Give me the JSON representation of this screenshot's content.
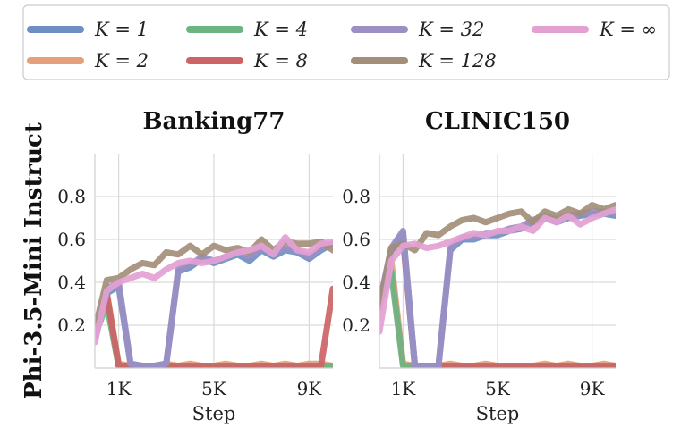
{
  "chart_data": {
    "type": "line",
    "row_label": "Phi-3.5-Mini Instruct",
    "legend": {
      "placement": "top",
      "entries": [
        {
          "key": "k1",
          "label": "K = 1",
          "color": "#6d8fc3"
        },
        {
          "key": "k2",
          "label": "K = 2",
          "color": "#e4a07a"
        },
        {
          "key": "k4",
          "label": "K = 4",
          "color": "#6db381"
        },
        {
          "key": "k8",
          "label": "K = 8",
          "color": "#cc6466"
        },
        {
          "key": "k32",
          "label": "K = 32",
          "color": "#9b8fc4"
        },
        {
          "key": "k128",
          "label": "K = 128",
          "color": "#a38e7a"
        },
        {
          "key": "kinf",
          "label": "K = ∞",
          "color": "#e3a1d2"
        }
      ]
    },
    "panels": [
      {
        "title": "Banking77",
        "xlabel": "Step",
        "ylabel": "",
        "xlim": [
          0,
          10000
        ],
        "ylim": [
          0.0,
          1.0
        ],
        "xticks": [
          1000,
          5000,
          9000
        ],
        "xtick_labels": [
          "1K",
          "5K",
          "9K"
        ],
        "yticks": [
          0.2,
          0.4,
          0.6,
          0.8
        ],
        "ytick_labels": [
          "0.2",
          "0.4",
          "0.6",
          "0.8"
        ],
        "grid": true,
        "x": [
          0,
          500,
          1000,
          1500,
          2000,
          2500,
          3000,
          3500,
          4000,
          4500,
          5000,
          5500,
          6000,
          6500,
          7000,
          7500,
          8000,
          8500,
          9000,
          9500,
          10000
        ],
        "series": [
          {
            "key": "k2",
            "values": [
              0.15,
              0.35,
              0.02,
              0.01,
              0.01,
              0.01,
              0.02,
              0.01,
              0.02,
              0.01,
              0.01,
              0.02,
              0.01,
              0.01,
              0.02,
              0.01,
              0.02,
              0.01,
              0.02,
              0.02,
              0.01
            ]
          },
          {
            "key": "k4",
            "values": [
              0.15,
              0.3,
              0.01,
              0.01,
              0.01,
              0.01,
              0.01,
              0.01,
              0.01,
              0.01,
              0.01,
              0.01,
              0.01,
              0.01,
              0.01,
              0.01,
              0.01,
              0.01,
              0.01,
              0.01,
              0.01
            ]
          },
          {
            "key": "k8",
            "values": [
              0.15,
              0.35,
              0.01,
              0.01,
              0.01,
              0.01,
              0.01,
              0.01,
              0.01,
              0.01,
              0.01,
              0.01,
              0.01,
              0.01,
              0.01,
              0.01,
              0.01,
              0.01,
              0.01,
              0.01,
              0.37
            ]
          },
          {
            "key": "k1",
            "values": [
              0.15,
              0.35,
              0.38,
              0.02,
              0.01,
              0.01,
              0.02,
              0.45,
              0.47,
              0.51,
              0.49,
              0.51,
              0.53,
              0.5,
              0.55,
              0.52,
              0.55,
              0.54,
              0.51,
              0.55,
              0.58
            ]
          },
          {
            "key": "k32",
            "values": [
              0.15,
              0.37,
              0.4,
              0.02,
              0.01,
              0.01,
              0.02,
              0.46,
              0.48,
              0.52,
              0.5,
              0.52,
              0.54,
              0.52,
              0.56,
              0.54,
              0.56,
              0.55,
              0.52,
              0.56,
              0.58
            ]
          },
          {
            "key": "k128",
            "values": [
              0.18,
              0.41,
              0.42,
              0.46,
              0.49,
              0.48,
              0.54,
              0.53,
              0.57,
              0.53,
              0.57,
              0.55,
              0.56,
              0.54,
              0.6,
              0.55,
              0.59,
              0.58,
              0.58,
              0.59,
              0.55
            ]
          },
          {
            "key": "kinf",
            "values": [
              0.12,
              0.36,
              0.4,
              0.42,
              0.44,
              0.42,
              0.46,
              0.49,
              0.5,
              0.49,
              0.5,
              0.52,
              0.54,
              0.55,
              0.57,
              0.53,
              0.61,
              0.55,
              0.54,
              0.58,
              0.59
            ]
          }
        ]
      },
      {
        "title": "CLINIC150",
        "xlabel": "Step",
        "ylabel": "",
        "xlim": [
          0,
          10000
        ],
        "ylim": [
          0.0,
          1.0
        ],
        "xticks": [
          1000,
          5000,
          9000
        ],
        "xtick_labels": [
          "1K",
          "5K",
          "9K"
        ],
        "yticks": [
          0.2,
          0.4,
          0.6,
          0.8
        ],
        "ytick_labels": [
          "0.2",
          "0.4",
          "0.6",
          "0.8"
        ],
        "grid": true,
        "x": [
          0,
          500,
          1000,
          1500,
          2000,
          2500,
          3000,
          3500,
          4000,
          4500,
          5000,
          5500,
          6000,
          6500,
          7000,
          7500,
          8000,
          8500,
          9000,
          9500,
          10000
        ],
        "series": [
          {
            "key": "k2",
            "values": [
              0.3,
              0.5,
              0.02,
              0.01,
              0.01,
              0.01,
              0.02,
              0.01,
              0.01,
              0.02,
              0.01,
              0.01,
              0.01,
              0.01,
              0.02,
              0.01,
              0.02,
              0.01,
              0.01,
              0.02,
              0.01
            ]
          },
          {
            "key": "k4",
            "values": [
              0.3,
              0.45,
              0.01,
              0.01,
              0.01,
              0.01,
              0.01,
              0.01,
              0.01,
              0.01,
              0.01,
              0.01,
              0.01,
              0.01,
              0.01,
              0.01,
              0.01,
              0.01,
              0.01,
              0.01,
              0.01
            ]
          },
          {
            "key": "k8",
            "values": [
              0.3,
              0.55,
              0.6,
              0.01,
              0.01,
              0.01,
              0.01,
              0.01,
              0.01,
              0.01,
              0.01,
              0.01,
              0.01,
              0.01,
              0.01,
              0.01,
              0.01,
              0.01,
              0.01,
              0.01,
              0.01
            ]
          },
          {
            "key": "k1",
            "values": [
              0.3,
              0.55,
              0.63,
              0.01,
              0.01,
              0.01,
              0.55,
              0.6,
              0.6,
              0.62,
              0.62,
              0.64,
              0.65,
              0.68,
              0.7,
              0.68,
              0.7,
              0.71,
              0.72,
              0.72,
              0.71
            ]
          },
          {
            "key": "k32",
            "values": [
              0.3,
              0.56,
              0.64,
              0.01,
              0.01,
              0.01,
              0.56,
              0.61,
              0.61,
              0.63,
              0.63,
              0.65,
              0.66,
              0.69,
              0.71,
              0.69,
              0.71,
              0.72,
              0.73,
              0.73,
              0.72
            ]
          },
          {
            "key": "k128",
            "values": [
              0.28,
              0.56,
              0.58,
              0.55,
              0.63,
              0.62,
              0.66,
              0.69,
              0.7,
              0.68,
              0.7,
              0.72,
              0.73,
              0.68,
              0.73,
              0.71,
              0.74,
              0.72,
              0.76,
              0.74,
              0.76
            ]
          },
          {
            "key": "kinf",
            "values": [
              0.17,
              0.5,
              0.57,
              0.58,
              0.56,
              0.57,
              0.59,
              0.61,
              0.63,
              0.62,
              0.64,
              0.64,
              0.66,
              0.64,
              0.7,
              0.68,
              0.71,
              0.67,
              0.7,
              0.72,
              0.74
            ]
          }
        ]
      }
    ]
  }
}
